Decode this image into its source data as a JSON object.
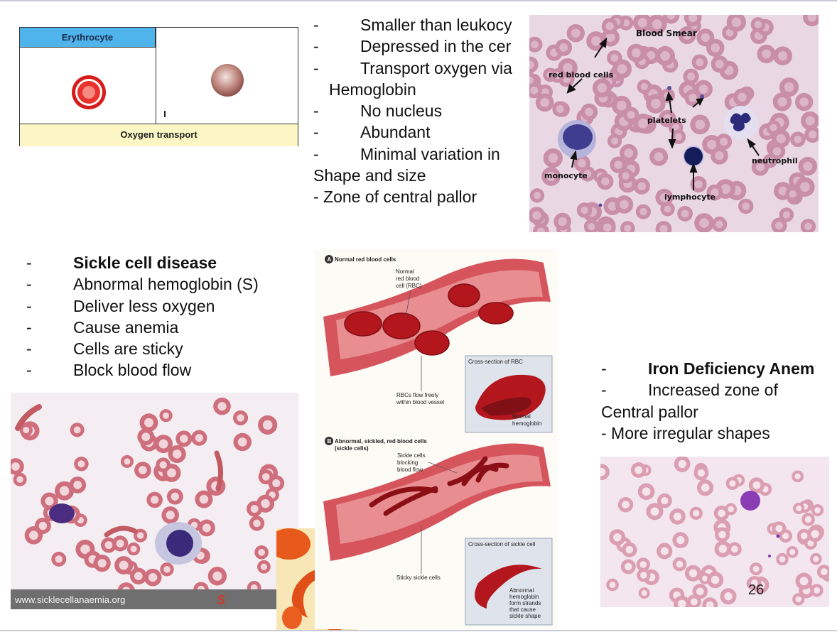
{
  "erythrocyte_table": {
    "header": "Erythrocyte",
    "footer": "Oxygen transport"
  },
  "erythrocyte_points": {
    "lines": [
      {
        "dash": "-",
        "text": "Smaller than leukocy"
      },
      {
        "dash": "-",
        "text": "Depressed in the cer"
      },
      {
        "dash": "-",
        "text": "Transport oxygen via"
      },
      {
        "dash": "",
        "text": "Hemoglobin"
      },
      {
        "dash": "-",
        "text": "No nucleus"
      },
      {
        "dash": "-",
        "text": "Abundant"
      },
      {
        "dash": "-",
        "text": "Minimal variation in"
      },
      {
        "dash": "",
        "text": "Shape and size"
      },
      {
        "dash": "",
        "text": "- Zone of central pallor"
      }
    ]
  },
  "blood_smear": {
    "title": "Blood Smear",
    "labels": {
      "rbc": "red blood cells",
      "platelets": "platelets",
      "neutrophil": "neutrophil",
      "monocyte": "monocyte",
      "lymphocyte": "lymphocyte"
    }
  },
  "sickle_points": {
    "lines": [
      {
        "dash": "-",
        "text": "Sickle cell disease",
        "bold": true
      },
      {
        "dash": "-",
        "text": "Abnormal hemoglobin (S)"
      },
      {
        "dash": "-",
        "text": "Deliver less oxygen"
      },
      {
        "dash": "-",
        "text": "Cause anemia"
      },
      {
        "dash": "-",
        "text": "Cells are sticky"
      },
      {
        "dash": "-",
        "text": "Block blood flow"
      }
    ]
  },
  "sickle_smear": {
    "watermark": "www.sicklecellanaemia.org",
    "corner_mark": "S"
  },
  "diagram": {
    "a_badge": "A",
    "a_title": "Normal red blood cells",
    "normal_rbc_1": "Normal",
    "normal_rbc_2": "red blood",
    "normal_rbc_3": "cell (RBC)",
    "cs_rbc": "Cross-section of RBC",
    "flow_1": "RBCs flow freely",
    "flow_2": "within blood vessel",
    "normal_hb_1": "Normal",
    "normal_hb_2": "hemoglobin",
    "b_badge": "B",
    "b_title_1": "Abnormal, sickled, red blood cells",
    "b_title_2": "(sickle cells)",
    "block_1": "Sickle cells",
    "block_2": "blocking",
    "block_3": "blood flow",
    "cs_sickle": "Cross-section of sickle cell",
    "sticky": "Sticky sickle cells",
    "abn_1": "Abnormal",
    "abn_2": "hemoglobin",
    "abn_3": "form strands",
    "abn_4": "that cause",
    "abn_5": "sickle shape"
  },
  "iron_points": {
    "lines": [
      {
        "dash": "-",
        "text": "Iron Deficiency Anem",
        "bold": true
      },
      {
        "dash": "-",
        "text": "Increased zone of"
      },
      {
        "dash": "",
        "text": "Central pallor"
      },
      {
        "dash": "",
        "text": "- More irregular shapes"
      }
    ]
  },
  "page_number": "26"
}
